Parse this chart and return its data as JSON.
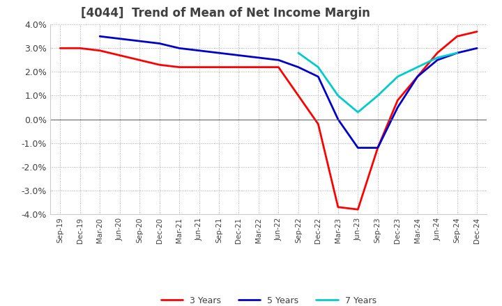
{
  "title": "[4044]  Trend of Mean of Net Income Margin",
  "ylim": [
    -0.04,
    0.04
  ],
  "yticks": [
    -0.04,
    -0.03,
    -0.02,
    -0.01,
    0.0,
    0.01,
    0.02,
    0.03,
    0.04
  ],
  "x_labels": [
    "Sep-19",
    "Dec-19",
    "Mar-20",
    "Jun-20",
    "Sep-20",
    "Dec-20",
    "Mar-21",
    "Jun-21",
    "Sep-21",
    "Dec-21",
    "Mar-22",
    "Jun-22",
    "Sep-22",
    "Dec-22",
    "Mar-23",
    "Jun-23",
    "Sep-23",
    "Dec-23",
    "Mar-24",
    "Jun-24",
    "Sep-24",
    "Dec-24"
  ],
  "series": {
    "3 Years": {
      "color": "#ff0000",
      "values": [
        0.03,
        0.03,
        0.029,
        0.027,
        0.025,
        0.023,
        0.022,
        0.022,
        0.022,
        0.022,
        0.022,
        0.022,
        0.01,
        -0.002,
        -0.037,
        -0.038,
        -0.012,
        0.008,
        0.018,
        0.028,
        0.035,
        0.037
      ]
    },
    "5 Years": {
      "color": "#0000cc",
      "values": [
        null,
        null,
        0.035,
        0.034,
        0.033,
        0.032,
        0.03,
        0.029,
        0.028,
        0.027,
        0.026,
        0.025,
        0.022,
        0.018,
        0.0,
        -0.012,
        -0.012,
        0.005,
        0.018,
        0.025,
        0.028,
        0.03
      ]
    },
    "7 Years": {
      "color": "#00cccc",
      "values": [
        null,
        null,
        null,
        null,
        null,
        null,
        null,
        null,
        null,
        null,
        null,
        null,
        0.028,
        0.022,
        0.01,
        0.003,
        0.01,
        0.018,
        0.022,
        0.026,
        0.028,
        null
      ]
    },
    "10 Years": {
      "color": "#008000",
      "values": [
        null,
        null,
        null,
        null,
        null,
        null,
        null,
        null,
        null,
        null,
        null,
        null,
        null,
        null,
        null,
        null,
        null,
        null,
        null,
        null,
        null,
        null
      ]
    }
  },
  "background_color": "#ffffff",
  "grid_color": "#aaaaaa",
  "title_color": "#404040",
  "title_fontsize": 12,
  "line_width": 2.0
}
